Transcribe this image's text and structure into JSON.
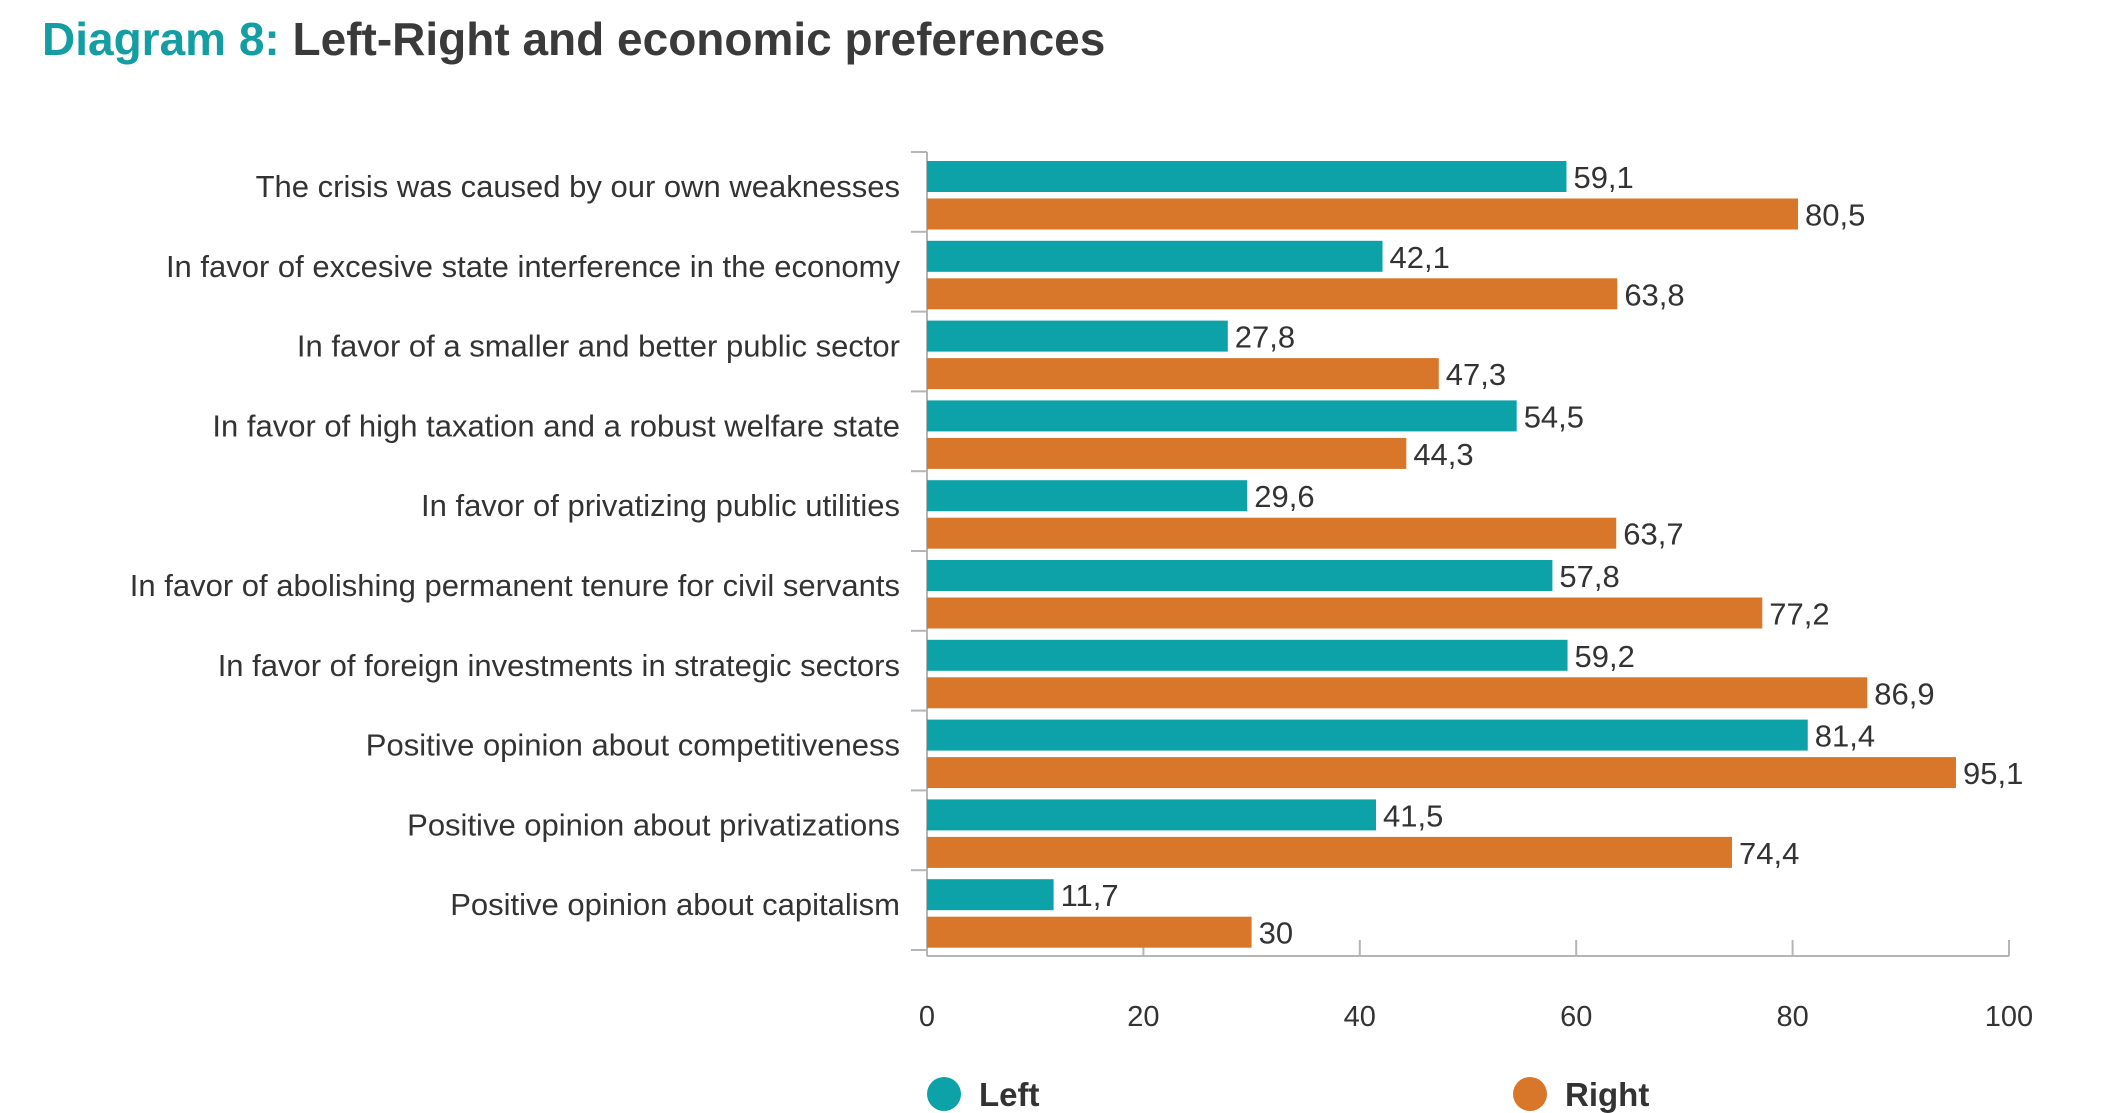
{
  "title_prefix": "Diagram 8:",
  "title_main": "Left-Right and economic preferences",
  "chart_data": {
    "type": "bar",
    "orientation": "horizontal",
    "categories": [
      "The crisis was caused by our own weaknesses",
      "In favor of excesive state interference in the economy",
      "In favor of a smaller and better public sector",
      "In favor of high taxation and a robust welfare state",
      "In favor of privatizing public utilities",
      "In favor of abolishing permanent tenure for civil servants",
      "In favor of foreign investments in strategic sectors",
      "Positive opinion about competitiveness",
      "Positive opinion about privatizations",
      "Positive opinion about capitalism"
    ],
    "series": [
      {
        "name": "Left",
        "color": "#0da2a8",
        "values": [
          59.1,
          42.1,
          27.8,
          54.5,
          29.6,
          57.8,
          59.2,
          81.4,
          41.5,
          11.7
        ],
        "labels": [
          "59,1",
          "42,1",
          "27,8",
          "54,5",
          "29,6",
          "57,8",
          "59,2",
          "81,4",
          "41,5",
          "11,7"
        ]
      },
      {
        "name": "Right",
        "color": "#d8772a",
        "values": [
          80.5,
          63.8,
          47.3,
          44.3,
          63.7,
          77.2,
          86.9,
          95.1,
          74.4,
          30
        ],
        "labels": [
          "80,5",
          "63,8",
          "47,3",
          "44,3",
          "63,7",
          "77,2",
          "86,9",
          "95,1",
          "74,4",
          "30"
        ]
      }
    ],
    "xlim": [
      0,
      100
    ],
    "xticks": [
      "0",
      "20",
      "40",
      "60",
      "80",
      "100"
    ],
    "xlabel": "",
    "ylabel": "",
    "grid": false,
    "legend_position": "bottom"
  }
}
